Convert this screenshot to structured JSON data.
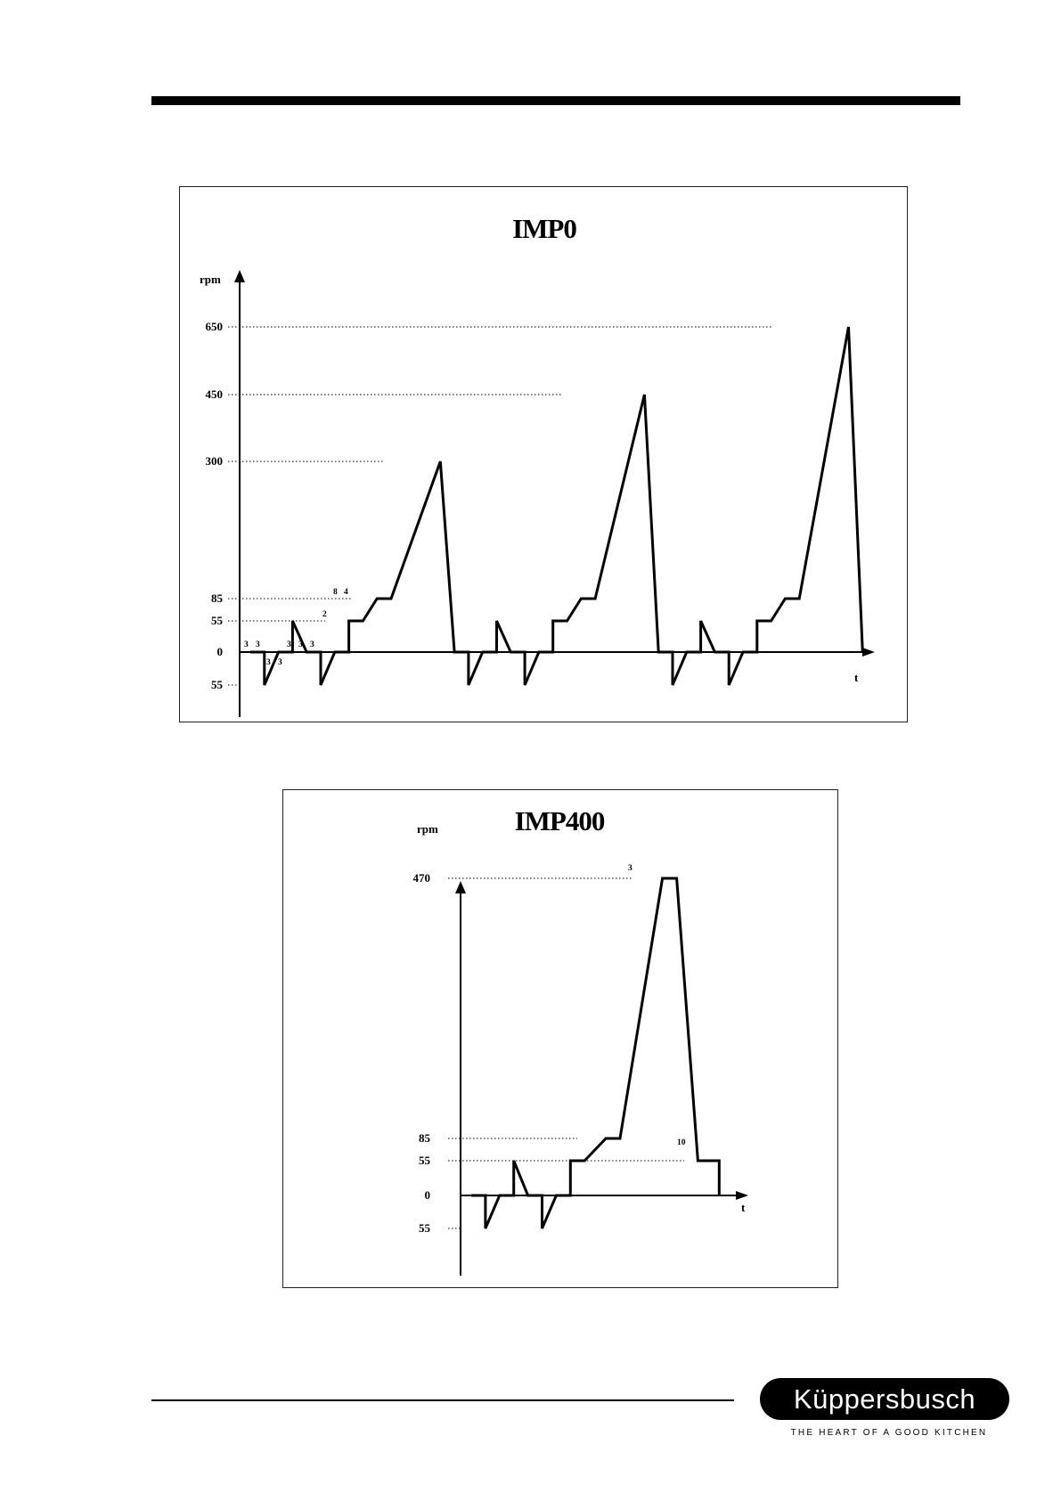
{
  "header": {
    "rule": true
  },
  "chart_data": [
    {
      "type": "line",
      "title": "IMP0",
      "ylabel": "rpm",
      "xlabel": "t",
      "y_tick_labels": [
        "650",
        "450",
        "300",
        "85",
        "55",
        "0",
        "55"
      ],
      "y_tick_values": [
        650,
        450,
        300,
        85,
        55,
        0,
        -55
      ],
      "annotations": [
        "3",
        "3",
        "3",
        "3",
        "3",
        "3",
        "3",
        "2",
        "8",
        "4"
      ],
      "grid": false,
      "series": [
        {
          "values": [
            [
              0,
              0
            ],
            [
              2,
              0
            ],
            [
              2,
              -55
            ],
            [
              4,
              0
            ],
            [
              6,
              0
            ],
            [
              6,
              55
            ],
            [
              8,
              0
            ],
            [
              10,
              0
            ],
            [
              10,
              -55
            ],
            [
              12,
              0
            ],
            [
              14,
              0
            ],
            [
              14,
              55
            ],
            [
              16,
              55
            ],
            [
              18,
              85
            ],
            [
              20,
              85
            ],
            [
              27,
              300
            ],
            [
              29,
              0
            ],
            [
              31,
              0
            ],
            [
              31,
              -55
            ],
            [
              33,
              0
            ],
            [
              35,
              0
            ],
            [
              35,
              55
            ],
            [
              37,
              0
            ],
            [
              39,
              0
            ],
            [
              39,
              -55
            ],
            [
              41,
              0
            ],
            [
              43,
              0
            ],
            [
              43,
              55
            ],
            [
              45,
              55
            ],
            [
              47,
              85
            ],
            [
              49,
              85
            ],
            [
              56,
              450
            ],
            [
              58,
              0
            ],
            [
              60,
              0
            ],
            [
              60,
              -55
            ],
            [
              62,
              0
            ],
            [
              64,
              0
            ],
            [
              64,
              55
            ],
            [
              66,
              0
            ],
            [
              68,
              0
            ],
            [
              68,
              -55
            ],
            [
              70,
              0
            ],
            [
              72,
              0
            ],
            [
              72,
              55
            ],
            [
              74,
              55
            ],
            [
              76,
              85
            ],
            [
              78,
              85
            ],
            [
              85,
              650
            ],
            [
              87,
              0
            ]
          ]
        }
      ]
    },
    {
      "type": "line",
      "title": "IMP400",
      "ylabel": "rpm",
      "xlabel": "t",
      "y_tick_labels": [
        "470",
        "85",
        "55",
        "0",
        "55"
      ],
      "y_tick_values": [
        470,
        85,
        55,
        0,
        -55
      ],
      "annotations": [
        "3",
        "10"
      ],
      "grid": false,
      "series": [
        {
          "values": [
            [
              0,
              0
            ],
            [
              2,
              0
            ],
            [
              2,
              -55
            ],
            [
              4,
              0
            ],
            [
              6,
              0
            ],
            [
              6,
              55
            ],
            [
              8,
              0
            ],
            [
              10,
              0
            ],
            [
              10,
              -55
            ],
            [
              12,
              0
            ],
            [
              14,
              0
            ],
            [
              14,
              55
            ],
            [
              16,
              55
            ],
            [
              19,
              85
            ],
            [
              21,
              85
            ],
            [
              27,
              470
            ],
            [
              29,
              470
            ],
            [
              32,
              55
            ],
            [
              35,
              55
            ],
            [
              35,
              0
            ]
          ]
        }
      ]
    }
  ],
  "brand": {
    "name": "Küppersbusch",
    "tagline": "THE HEART OF A GOOD KITCHEN"
  }
}
